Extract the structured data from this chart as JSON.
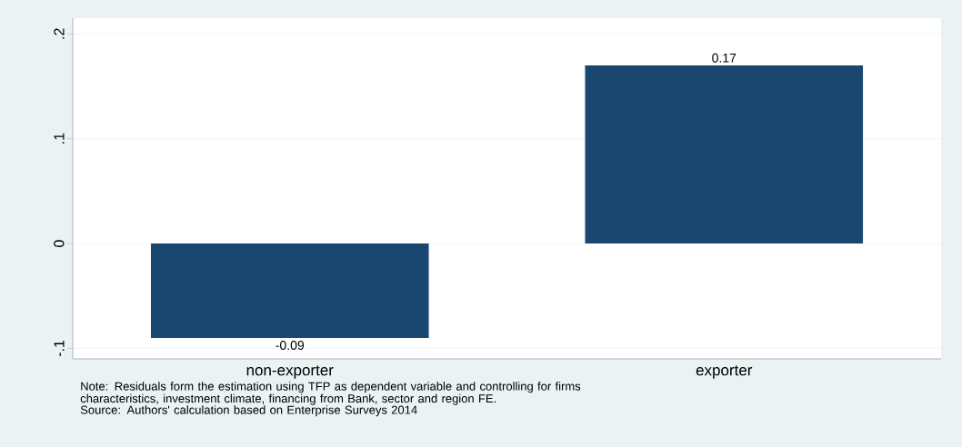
{
  "chart_data": {
    "type": "bar",
    "categories": [
      "non-exporter",
      "exporter"
    ],
    "values": [
      -0.09,
      0.17
    ],
    "color": "#1a476f",
    "ylim": [
      -0.11,
      0.215
    ],
    "yticks": [
      {
        "value": -0.1,
        "label": "-.1"
      },
      0,
      {
        "value": 0.1,
        "label": ".1"
      },
      {
        "value": 0.2,
        "label": ".2"
      }
    ],
    "grid": "y",
    "data_labels": true,
    "annotations": [
      "Note: Residuals form the estimation using TFP as dependent variable and controlling for firms characteristics, investment climate, financing from Bank, sector and region FE.",
      "Source: Authors' calculation based on Enterprise Surveys 2014"
    ]
  }
}
